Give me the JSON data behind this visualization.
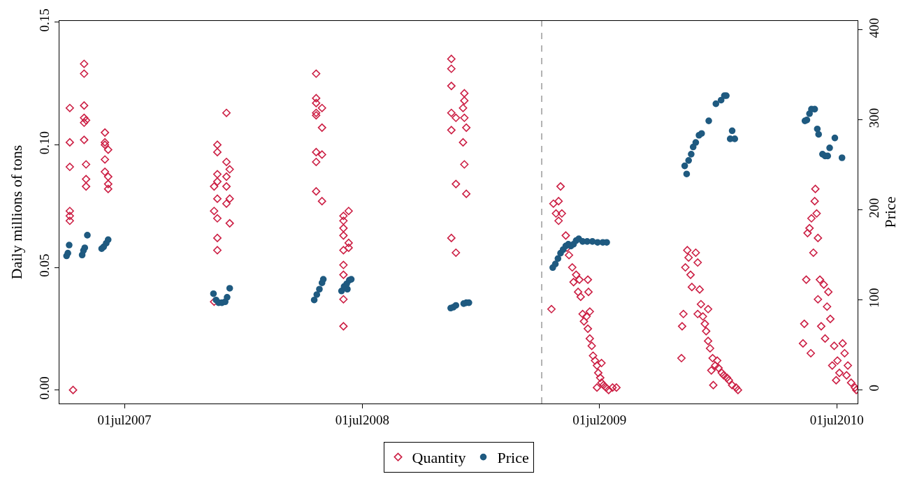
{
  "chart_data": {
    "type": "scatter",
    "ylabel": "Daily millions of tons",
    "y2label": "Price",
    "xlim": [
      "2007-03-23",
      "2010-08-02"
    ],
    "xticks": [
      {
        "value": "2007-07-01",
        "label": "01jul2007"
      },
      {
        "value": "2008-07-01",
        "label": "01jul2008"
      },
      {
        "value": "2009-07-01",
        "label": "01jul2009"
      },
      {
        "value": "2010-07-01",
        "label": "01jul2010"
      }
    ],
    "ylim": [
      -0.0055,
      0.1505
    ],
    "yticks": [
      {
        "value": 0,
        "label": "0.00"
      },
      {
        "value": 0.05,
        "label": "0.05"
      },
      {
        "value": 0.1,
        "label": "0.10"
      },
      {
        "value": 0.15,
        "label": "0.15"
      }
    ],
    "y2lim": [
      -15,
      410
    ],
    "y2ticks": [
      0,
      100,
      200,
      300,
      400
    ],
    "legend": "bottom",
    "ref_lines": [
      {
        "axis": "x",
        "value": "2009-04-03",
        "color": "#999999",
        "line_style": "dashed"
      }
    ],
    "series": [
      {
        "name": "Quantity",
        "color": "#cc1f44",
        "marker": "diamond",
        "x": [
          "2007-04-08",
          "2007-04-08",
          "2007-04-08",
          "2007-04-08",
          "2007-04-08",
          "2007-04-08",
          "2007-04-13",
          "2007-04-30",
          "2007-04-30",
          "2007-04-30",
          "2007-04-30",
          "2007-04-30",
          "2007-04-30",
          "2007-05-03",
          "2007-05-03",
          "2007-05-03",
          "2007-05-03",
          "2007-06-01",
          "2007-06-01",
          "2007-06-01",
          "2007-06-01",
          "2007-06-01",
          "2007-06-06",
          "2007-06-06",
          "2007-06-06",
          "2007-06-06",
          "2007-11-21",
          "2007-11-21",
          "2007-11-21",
          "2007-11-21",
          "2007-11-16",
          "2007-11-21",
          "2007-11-16",
          "2007-11-21",
          "2007-11-21",
          "2007-11-21",
          "2007-11-16",
          "2007-12-05",
          "2007-12-05",
          "2007-12-10",
          "2007-12-05",
          "2007-12-05",
          "2007-12-10",
          "2007-12-05",
          "2007-12-10",
          "2008-04-21",
          "2008-04-21",
          "2008-04-21",
          "2008-04-30",
          "2008-04-21",
          "2008-04-21",
          "2008-04-30",
          "2008-04-21",
          "2008-04-30",
          "2008-04-21",
          "2008-04-21",
          "2008-04-30",
          "2008-06-02",
          "2008-06-02",
          "2008-06-02",
          "2008-06-02",
          "2008-06-10",
          "2008-06-10",
          "2008-06-02",
          "2008-06-02",
          "2008-06-02",
          "2008-06-02",
          "2008-06-02",
          "2008-06-10",
          "2008-11-15",
          "2008-11-15",
          "2008-11-15",
          "2008-11-15",
          "2008-11-22",
          "2008-11-15",
          "2008-11-22",
          "2008-11-15",
          "2008-11-22",
          "2008-12-05",
          "2008-12-05",
          "2008-12-03",
          "2008-12-05",
          "2008-12-08",
          "2008-12-03",
          "2008-12-05",
          "2008-12-08",
          "2009-04-18",
          "2009-04-21",
          "2009-04-25",
          "2009-04-29",
          "2009-05-02",
          "2009-04-29",
          "2009-05-04",
          "2009-05-10",
          "2009-05-12",
          "2009-05-15",
          "2009-05-20",
          "2009-05-22",
          "2009-05-26",
          "2009-05-29",
          "2009-05-31",
          "2009-06-02",
          "2009-06-05",
          "2009-06-07",
          "2009-06-11",
          "2009-06-13",
          "2009-06-16",
          "2009-06-19",
          "2009-06-21",
          "2009-06-24",
          "2009-06-27",
          "2009-06-29",
          "2009-07-02",
          "2009-07-04",
          "2009-07-07",
          "2009-07-11",
          "2009-07-15",
          "2009-07-21",
          "2009-07-27",
          "2009-06-16",
          "2009-06-14",
          "2009-06-13",
          "2009-06-27",
          "2009-07-04",
          "2009-11-04",
          "2009-11-05",
          "2009-11-07",
          "2009-11-10",
          "2009-11-13",
          "2009-11-15",
          "2009-11-18",
          "2009-11-20",
          "2009-11-26",
          "2009-11-29",
          "2009-12-02",
          "2009-11-29",
          "2009-12-04",
          "2009-12-07",
          "2009-12-10",
          "2009-12-12",
          "2009-12-15",
          "2009-12-18",
          "2009-12-22",
          "2009-12-20",
          "2009-12-23",
          "2009-12-26",
          "2009-12-29",
          "2009-12-31",
          "2010-01-05",
          "2010-01-08",
          "2010-01-13",
          "2010-01-16",
          "2010-01-21",
          "2010-01-27",
          "2010-01-30",
          "2009-12-15",
          "2010-05-10",
          "2010-05-12",
          "2010-05-15",
          "2010-05-17",
          "2010-05-20",
          "2010-05-22",
          "2010-05-23",
          "2010-05-26",
          "2010-05-28",
          "2010-05-29",
          "2010-05-31",
          "2010-06-02",
          "2010-06-05",
          "2010-06-02",
          "2010-06-07",
          "2010-06-11",
          "2010-06-13",
          "2010-06-16",
          "2010-06-18",
          "2010-06-21",
          "2010-06-24",
          "2010-06-27",
          "2010-06-30",
          "2010-07-02",
          "2010-07-05",
          "2010-07-10",
          "2010-07-13",
          "2010-07-16",
          "2010-07-18",
          "2010-07-23",
          "2010-07-29",
          "2010-07-31"
        ],
        "values": [
          0.115,
          0.101,
          0.091,
          0.073,
          0.071,
          0.069,
          0.0,
          0.133,
          0.129,
          0.116,
          0.111,
          0.109,
          0.102,
          0.11,
          0.092,
          0.086,
          0.083,
          0.105,
          0.101,
          0.1,
          0.094,
          0.089,
          0.098,
          0.087,
          0.084,
          0.082,
          0.1,
          0.097,
          0.088,
          0.085,
          0.083,
          0.078,
          0.073,
          0.07,
          0.062,
          0.057,
          0.036,
          0.113,
          0.093,
          0.09,
          0.087,
          0.083,
          0.078,
          0.076,
          0.068,
          0.129,
          0.119,
          0.117,
          0.115,
          0.113,
          0.112,
          0.107,
          0.097,
          0.096,
          0.093,
          0.081,
          0.077,
          0.071,
          0.069,
          0.066,
          0.063,
          0.06,
          0.058,
          0.057,
          0.051,
          0.047,
          0.037,
          0.026,
          0.073,
          0.135,
          0.131,
          0.124,
          0.113,
          0.111,
          0.106,
          0.084,
          0.062,
          0.056,
          0.121,
          0.118,
          0.115,
          0.111,
          0.107,
          0.101,
          0.092,
          0.08,
          0.033,
          0.076,
          0.072,
          0.077,
          0.083,
          0.069,
          0.072,
          0.063,
          0.058,
          0.055,
          0.05,
          0.044,
          0.047,
          0.04,
          0.045,
          0.038,
          0.031,
          0.028,
          0.03,
          0.025,
          0.021,
          0.018,
          0.014,
          0.012,
          0.01,
          0.007,
          0.005,
          0.003,
          0.002,
          0.001,
          0.0,
          0.001,
          0.001,
          0.032,
          0.04,
          0.045,
          0.001,
          0.011,
          0.013,
          0.026,
          0.031,
          0.05,
          0.057,
          0.054,
          0.047,
          0.042,
          0.056,
          0.052,
          0.041,
          0.031,
          0.035,
          0.03,
          0.027,
          0.024,
          0.02,
          0.017,
          0.013,
          0.008,
          0.002,
          0.01,
          0.012,
          0.009,
          0.007,
          0.006,
          0.005,
          0.004,
          0.002,
          0.001,
          0.0,
          0.033,
          0.019,
          0.027,
          0.045,
          0.064,
          0.066,
          0.015,
          0.07,
          0.056,
          0.077,
          0.082,
          0.072,
          0.062,
          0.045,
          0.037,
          0.026,
          0.043,
          0.021,
          0.034,
          0.04,
          0.029,
          0.01,
          0.018,
          0.004,
          0.012,
          0.007,
          0.019,
          0.015,
          0.006,
          0.01,
          0.003,
          0.001,
          0.0
        ]
      },
      {
        "name": "Price",
        "color": "#1f5a80",
        "marker": "circle",
        "axis": "y2",
        "x": [
          "2007-04-03",
          "2007-04-05",
          "2007-04-07",
          "2007-04-27",
          "2007-04-29",
          "2007-05-01",
          "2007-05-05",
          "2007-05-27",
          "2007-05-30",
          "2007-06-03",
          "2007-06-06",
          "2007-11-15",
          "2007-11-19",
          "2007-11-23",
          "2007-11-28",
          "2007-12-03",
          "2007-12-06",
          "2007-12-10",
          "2008-04-18",
          "2008-04-22",
          "2008-04-26",
          "2008-04-30",
          "2008-05-02",
          "2008-05-30",
          "2008-06-03",
          "2008-06-07",
          "2008-06-11",
          "2008-06-14",
          "2008-06-08",
          "2008-11-14",
          "2008-11-18",
          "2008-11-22",
          "2008-12-04",
          "2008-12-08",
          "2008-12-12",
          "2009-04-20",
          "2009-04-24",
          "2009-04-28",
          "2009-05-02",
          "2009-05-06",
          "2009-05-10",
          "2009-05-14",
          "2009-05-18",
          "2009-05-22",
          "2009-05-26",
          "2009-05-30",
          "2009-06-05",
          "2009-06-12",
          "2009-06-20",
          "2009-06-28",
          "2009-07-06",
          "2009-07-12",
          "2009-11-09",
          "2009-11-12",
          "2009-11-15",
          "2009-11-19",
          "2009-11-22",
          "2009-11-26",
          "2009-12-01",
          "2009-12-05",
          "2009-12-16",
          "2009-12-27",
          "2010-01-04",
          "2010-01-09",
          "2010-01-12",
          "2010-01-18",
          "2010-01-21",
          "2010-01-25",
          "2010-05-13",
          "2010-05-16",
          "2010-05-20",
          "2010-05-23",
          "2010-05-28",
          "2010-06-01",
          "2010-06-03",
          "2010-06-09",
          "2010-06-13",
          "2010-06-17",
          "2010-06-20",
          "2010-06-28",
          "2010-07-09"
        ],
        "values": [
          149,
          152,
          161,
          150,
          155,
          158,
          172,
          157,
          159,
          163,
          167,
          107,
          100,
          97,
          97,
          98,
          103,
          113,
          100,
          106,
          112,
          119,
          123,
          110,
          115,
          118,
          122,
          123,
          112,
          91,
          92,
          94,
          96,
          97,
          97,
          136,
          140,
          146,
          152,
          156,
          160,
          162,
          160,
          162,
          166,
          168,
          165,
          165,
          165,
          164,
          164,
          164,
          249,
          240,
          255,
          262,
          270,
          275,
          283,
          285,
          299,
          318,
          322,
          327,
          327,
          279,
          288,
          279,
          299,
          300,
          307,
          312,
          312,
          290,
          284,
          262,
          260,
          260,
          269,
          280,
          258
        ]
      }
    ]
  }
}
